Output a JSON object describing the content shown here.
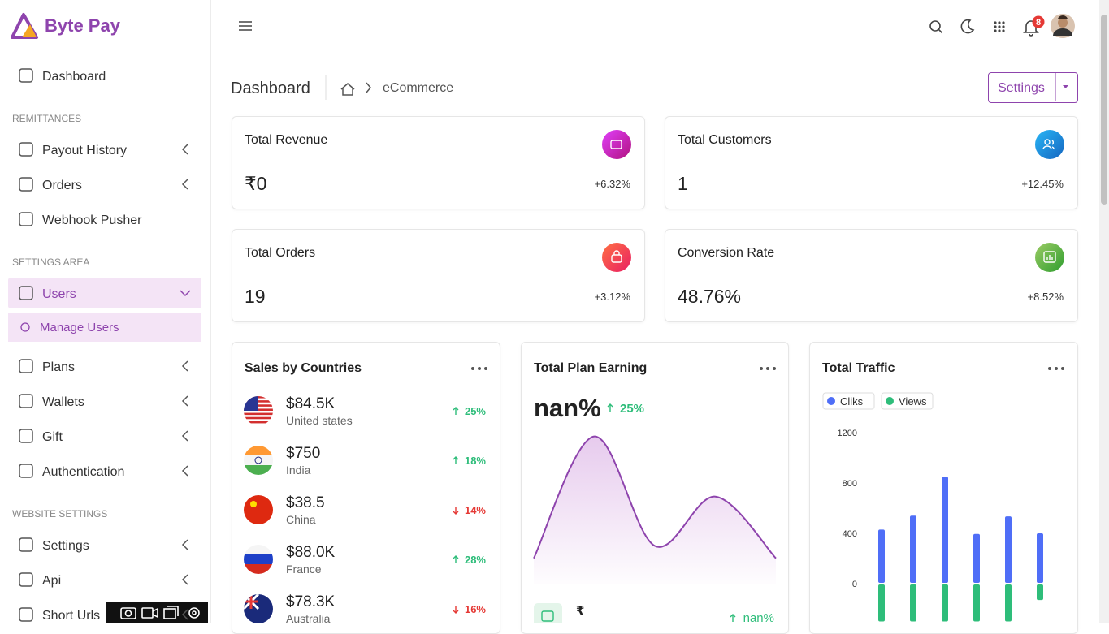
{
  "brand": "Byte Pay",
  "sidebar": {
    "top": [
      {
        "label": "Dashboard",
        "chevron": false
      }
    ],
    "sections": [
      {
        "title": "REMITTANCES",
        "items": [
          {
            "label": "Payout History",
            "chevron": true
          },
          {
            "label": "Orders",
            "chevron": true
          },
          {
            "label": "Webhook Pusher",
            "chevron": false
          }
        ]
      },
      {
        "title": "SETTINGS AREA",
        "items": [
          {
            "label": "Users",
            "chevron": true,
            "expanded": true,
            "children": [
              "Manage Users"
            ]
          },
          {
            "label": "Plans",
            "chevron": true
          },
          {
            "label": "Wallets",
            "chevron": true
          },
          {
            "label": "Gift",
            "chevron": true
          },
          {
            "label": "Authentication",
            "chevron": true
          }
        ]
      },
      {
        "title": "WEBSITE SETTINGS",
        "items": [
          {
            "label": "Settings",
            "chevron": true
          },
          {
            "label": "Api",
            "chevron": true
          },
          {
            "label": "Short Urls",
            "chevron": true
          }
        ]
      }
    ]
  },
  "header": {
    "notifications": "8"
  },
  "page": {
    "title": "Dashboard",
    "breadcrumb": "eCommerce",
    "settings_button": "Settings"
  },
  "stats": [
    {
      "label": "Total Revenue",
      "value": "₹0",
      "change": "+6.32%"
    },
    {
      "label": "Total Customers",
      "value": "1",
      "change": "+12.45%"
    },
    {
      "label": "Total Orders",
      "value": "19",
      "change": "+3.12%"
    },
    {
      "label": "Conversion Rate",
      "value": "48.76%",
      "change": "+8.52%"
    }
  ],
  "sales": {
    "title": "Sales by Countries",
    "rows": [
      {
        "amount": "$84.5K",
        "country": "United states",
        "change": "25%",
        "up": true
      },
      {
        "amount": "$750",
        "country": "India",
        "change": "18%",
        "up": true
      },
      {
        "amount": "$38.5",
        "country": "China",
        "change": "14%",
        "up": false
      },
      {
        "amount": "$88.0K",
        "country": "France",
        "change": "28%",
        "up": true
      },
      {
        "amount": "$78.3K",
        "country": "Australia",
        "change": "16%",
        "up": false
      }
    ]
  },
  "chart_data": [
    {
      "type": "area",
      "title": "Total Plan Earning",
      "headline": "nan%",
      "headline_change": "25%",
      "footer_symbol": "₹",
      "footer_change": "nan%",
      "values": [
        17,
        96,
        25,
        57,
        17
      ],
      "ylim": [
        0,
        100
      ],
      "color": "#8e44ad"
    },
    {
      "type": "bar",
      "title": "Total Traffic",
      "series": [
        {
          "name": "Cliks",
          "color": "#4f6ef7",
          "values": [
            430,
            540,
            850,
            395,
            535,
            400
          ]
        },
        {
          "name": "Views",
          "color": "#2ebd7a",
          "values": [
            -300,
            -300,
            -300,
            -300,
            -300,
            -130
          ]
        }
      ],
      "ylim": [
        -300,
        1200
      ],
      "yticks": [
        0,
        400,
        800,
        1200
      ]
    }
  ]
}
